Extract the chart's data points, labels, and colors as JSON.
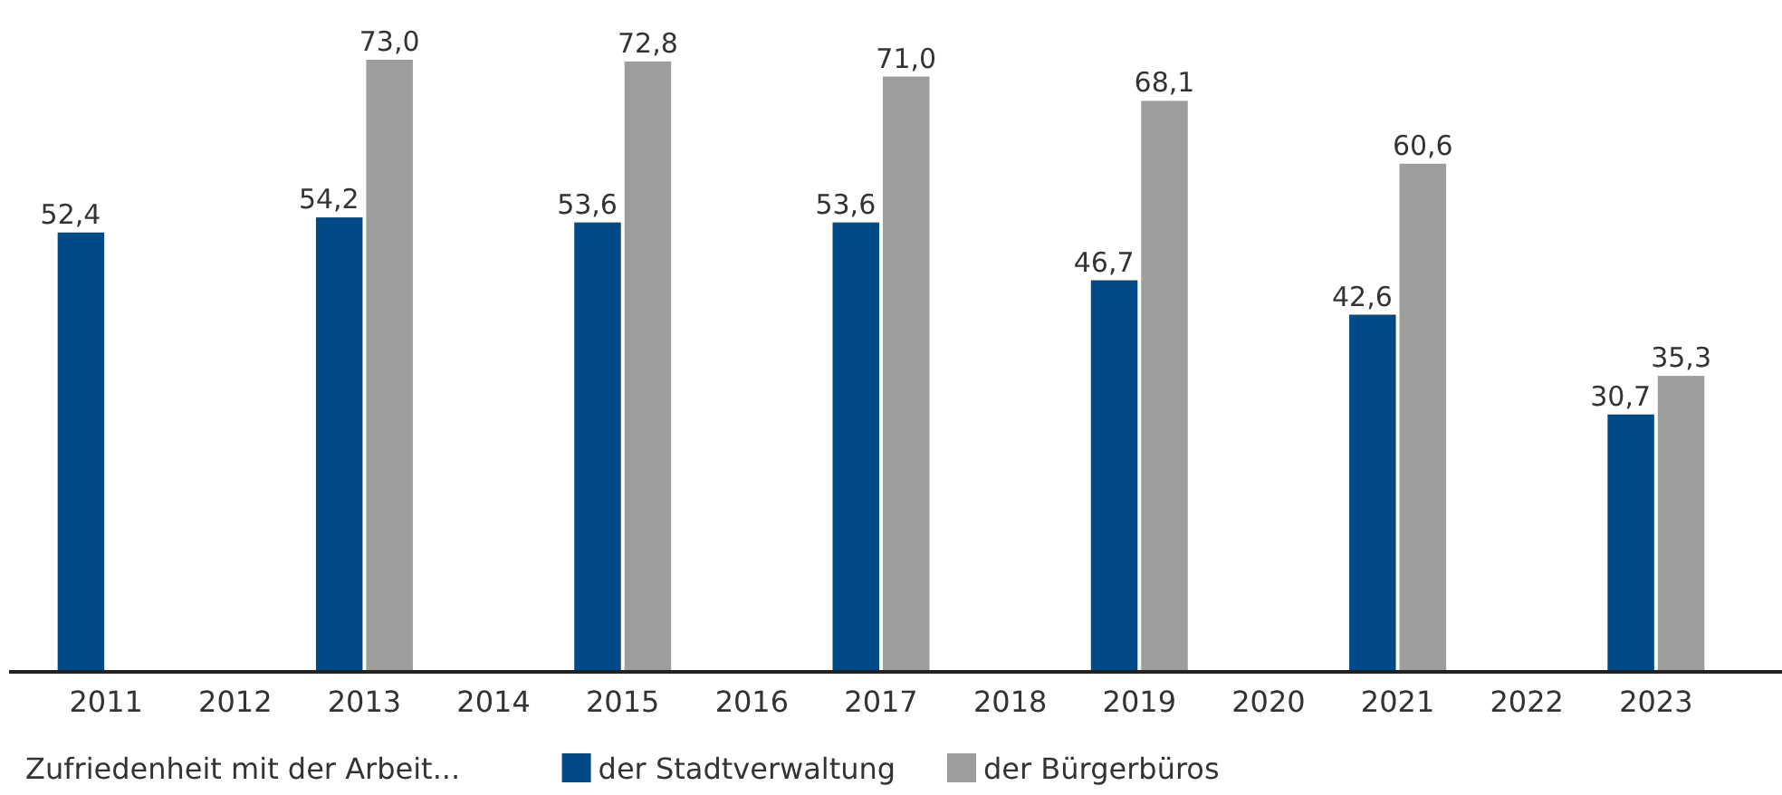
{
  "chart_data": {
    "type": "bar",
    "categories": [
      "2011",
      "2012",
      "2013",
      "2014",
      "2015",
      "2016",
      "2017",
      "2018",
      "2019",
      "2020",
      "2021",
      "2022",
      "2023"
    ],
    "series": [
      {
        "name": "der Stadtverwaltung",
        "color": "#004b87",
        "values": [
          52.4,
          null,
          54.2,
          null,
          53.6,
          null,
          53.6,
          null,
          46.7,
          null,
          42.6,
          null,
          30.7
        ],
        "value_labels": [
          "52,4",
          null,
          "54,2",
          null,
          "53,6",
          null,
          "53,6",
          null,
          "46,7",
          null,
          "42,6",
          null,
          "30,7"
        ]
      },
      {
        "name": "der Bürgerbüros",
        "color": "#9d9d9c",
        "values": [
          null,
          null,
          73.0,
          null,
          72.8,
          null,
          71.0,
          null,
          68.1,
          null,
          60.6,
          null,
          35.3
        ],
        "value_labels": [
          null,
          null,
          "73,0",
          null,
          "72,8",
          null,
          "71,0",
          null,
          "68,1",
          null,
          "60,6",
          null,
          "35,3"
        ]
      }
    ],
    "legend": "bottom",
    "legend_title": "Zufriedenheit mit der Arbeit..."
  }
}
